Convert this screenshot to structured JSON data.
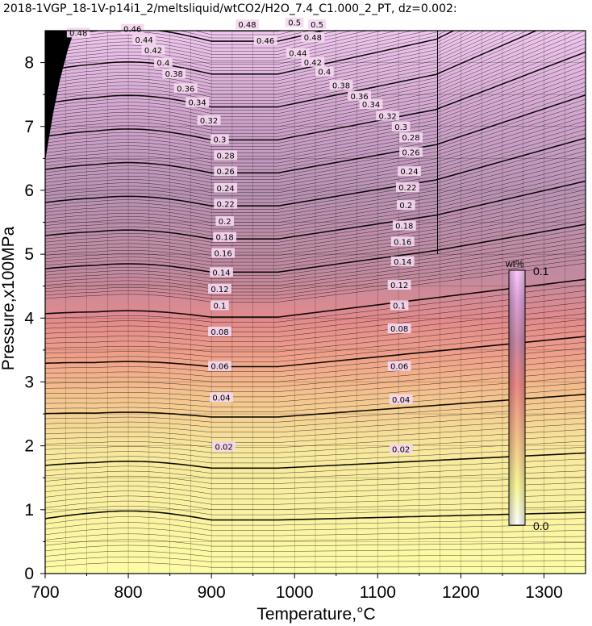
{
  "chart_data": {
    "type": "contour",
    "title": "2018-1VGP_18-1V-p14i1_2/meltsliquid/wtCO2/H2O_7.4_C1.000_2_PT, dz=0.002:",
    "xlabel": "Temperature,°C",
    "ylabel": "Pressure,x100MPa",
    "xlim": [
      700,
      1350
    ],
    "ylim": [
      0,
      8.5
    ],
    "x_ticks": [
      "700",
      "800",
      "900",
      "1000",
      "1100",
      "1200",
      "1300"
    ],
    "y_ticks": [
      "0",
      "1",
      "2",
      "3",
      "4",
      "5",
      "6",
      "7",
      "8"
    ],
    "grid": true,
    "contour_interval": 0.002,
    "annotated_interval": 0.02,
    "contour_levels_labeled": [
      {
        "value": 0.02,
        "label": "0.02"
      },
      {
        "value": 0.04,
        "label": "0.04"
      },
      {
        "value": 0.06,
        "label": "0.06"
      },
      {
        "value": 0.08,
        "label": "0.08"
      },
      {
        "value": 0.1,
        "label": "0.1"
      },
      {
        "value": 0.12,
        "label": "0.12"
      },
      {
        "value": 0.14,
        "label": "0.14"
      },
      {
        "value": 0.16,
        "label": "0.16"
      },
      {
        "value": 0.18,
        "label": "0.18"
      },
      {
        "value": 0.2,
        "label": "0.2"
      },
      {
        "value": 0.22,
        "label": "0.22"
      },
      {
        "value": 0.24,
        "label": "0.24"
      },
      {
        "value": 0.26,
        "label": "0.26"
      },
      {
        "value": 0.28,
        "label": "0.28"
      },
      {
        "value": 0.3,
        "label": "0.3"
      },
      {
        "value": 0.32,
        "label": "0.32"
      },
      {
        "value": 0.34,
        "label": "0.34"
      },
      {
        "value": 0.36,
        "label": "0.36"
      },
      {
        "value": 0.38,
        "label": "0.38"
      },
      {
        "value": 0.4,
        "label": "0.4"
      },
      {
        "value": 0.42,
        "label": "0.42"
      },
      {
        "value": 0.44,
        "label": "0.44"
      },
      {
        "value": 0.46,
        "label": "0.46"
      },
      {
        "value": 0.48,
        "label": "0.48"
      },
      {
        "value": 0.5,
        "label": "0.5"
      }
    ],
    "contour_label_positions": [
      {
        "label": "0.02",
        "T": 915,
        "P": 1.99
      },
      {
        "label": "0.02",
        "T": 1128,
        "P": 1.95
      },
      {
        "label": "0.04",
        "T": 912,
        "P": 2.76
      },
      {
        "label": "0.04",
        "T": 1128,
        "P": 2.73
      },
      {
        "label": "0.06",
        "T": 910,
        "P": 3.25
      },
      {
        "label": "0.06",
        "T": 1126,
        "P": 3.25
      },
      {
        "label": "0.08",
        "T": 910,
        "P": 3.79
      },
      {
        "label": "0.08",
        "T": 1126,
        "P": 3.84
      },
      {
        "label": "0.1",
        "T": 910,
        "P": 4.2
      },
      {
        "label": "0.1",
        "T": 1126,
        "P": 4.2
      },
      {
        "label": "0.12",
        "T": 910,
        "P": 4.46
      },
      {
        "label": "0.12",
        "T": 1126,
        "P": 4.52
      },
      {
        "label": "0.14",
        "T": 912,
        "P": 4.72
      },
      {
        "label": "0.14",
        "T": 1130,
        "P": 4.89
      },
      {
        "label": "0.16",
        "T": 914,
        "P": 5.02
      },
      {
        "label": "0.16",
        "T": 1130,
        "P": 5.2
      },
      {
        "label": "0.18",
        "T": 916,
        "P": 5.27
      },
      {
        "label": "0.18",
        "T": 1132,
        "P": 5.45
      },
      {
        "label": "0.2",
        "T": 916,
        "P": 5.52
      },
      {
        "label": "0.2",
        "T": 1134,
        "P": 5.77
      },
      {
        "label": "0.22",
        "T": 917,
        "P": 5.79
      },
      {
        "label": "0.22",
        "T": 1136,
        "P": 6.05
      },
      {
        "label": "0.24",
        "T": 917,
        "P": 6.04
      },
      {
        "label": "0.24",
        "T": 1138,
        "P": 6.3
      },
      {
        "label": "0.26",
        "T": 917,
        "P": 6.3
      },
      {
        "label": "0.26",
        "T": 1140,
        "P": 6.6
      },
      {
        "label": "0.28",
        "T": 917,
        "P": 6.55
      },
      {
        "label": "0.28",
        "T": 1140,
        "P": 6.83
      },
      {
        "label": "0.3",
        "T": 910,
        "P": 6.8
      },
      {
        "label": "0.3",
        "T": 1128,
        "P": 7.0
      },
      {
        "label": "0.32",
        "T": 897,
        "P": 7.1
      },
      {
        "label": "0.32",
        "T": 1112,
        "P": 7.17
      },
      {
        "label": "0.34",
        "T": 883,
        "P": 7.38
      },
      {
        "label": "0.34",
        "T": 1092,
        "P": 7.35
      },
      {
        "label": "0.36",
        "T": 869,
        "P": 7.6
      },
      {
        "label": "0.36",
        "T": 1078,
        "P": 7.48
      },
      {
        "label": "0.38",
        "T": 855,
        "P": 7.83
      },
      {
        "label": "0.38",
        "T": 1056,
        "P": 7.65
      },
      {
        "label": "0.4",
        "T": 842,
        "P": 8.0
      },
      {
        "label": "0.4",
        "T": 1036,
        "P": 7.86
      },
      {
        "label": "0.42",
        "T": 830,
        "P": 8.2
      },
      {
        "label": "0.42",
        "T": 1022,
        "P": 8.01
      },
      {
        "label": "0.44",
        "T": 819,
        "P": 8.36
      },
      {
        "label": "0.44",
        "T": 1004,
        "P": 8.15
      },
      {
        "label": "0.46",
        "T": 805,
        "P": 8.53
      },
      {
        "label": "0.46",
        "T": 965,
        "P": 8.35
      },
      {
        "label": "0.48",
        "T": 740,
        "P": 8.47
      },
      {
        "label": "0.48",
        "T": 943,
        "P": 8.6
      },
      {
        "label": "0.48",
        "T": 1022,
        "P": 8.4
      },
      {
        "label": "0.5",
        "T": 1000,
        "P": 8.63
      },
      {
        "label": "0.5",
        "T": 1027,
        "P": 8.6
      }
    ],
    "colorbar": {
      "title": "wt%",
      "max_label": "0.1",
      "min_label": "0.0",
      "range": [
        0.0,
        0.1
      ],
      "colors": [
        "#ffffff",
        "#fafa9c",
        "#f6c08c",
        "#ee8a86",
        "#c889a8",
        "#dca3d6",
        "#ffcaff"
      ]
    }
  }
}
